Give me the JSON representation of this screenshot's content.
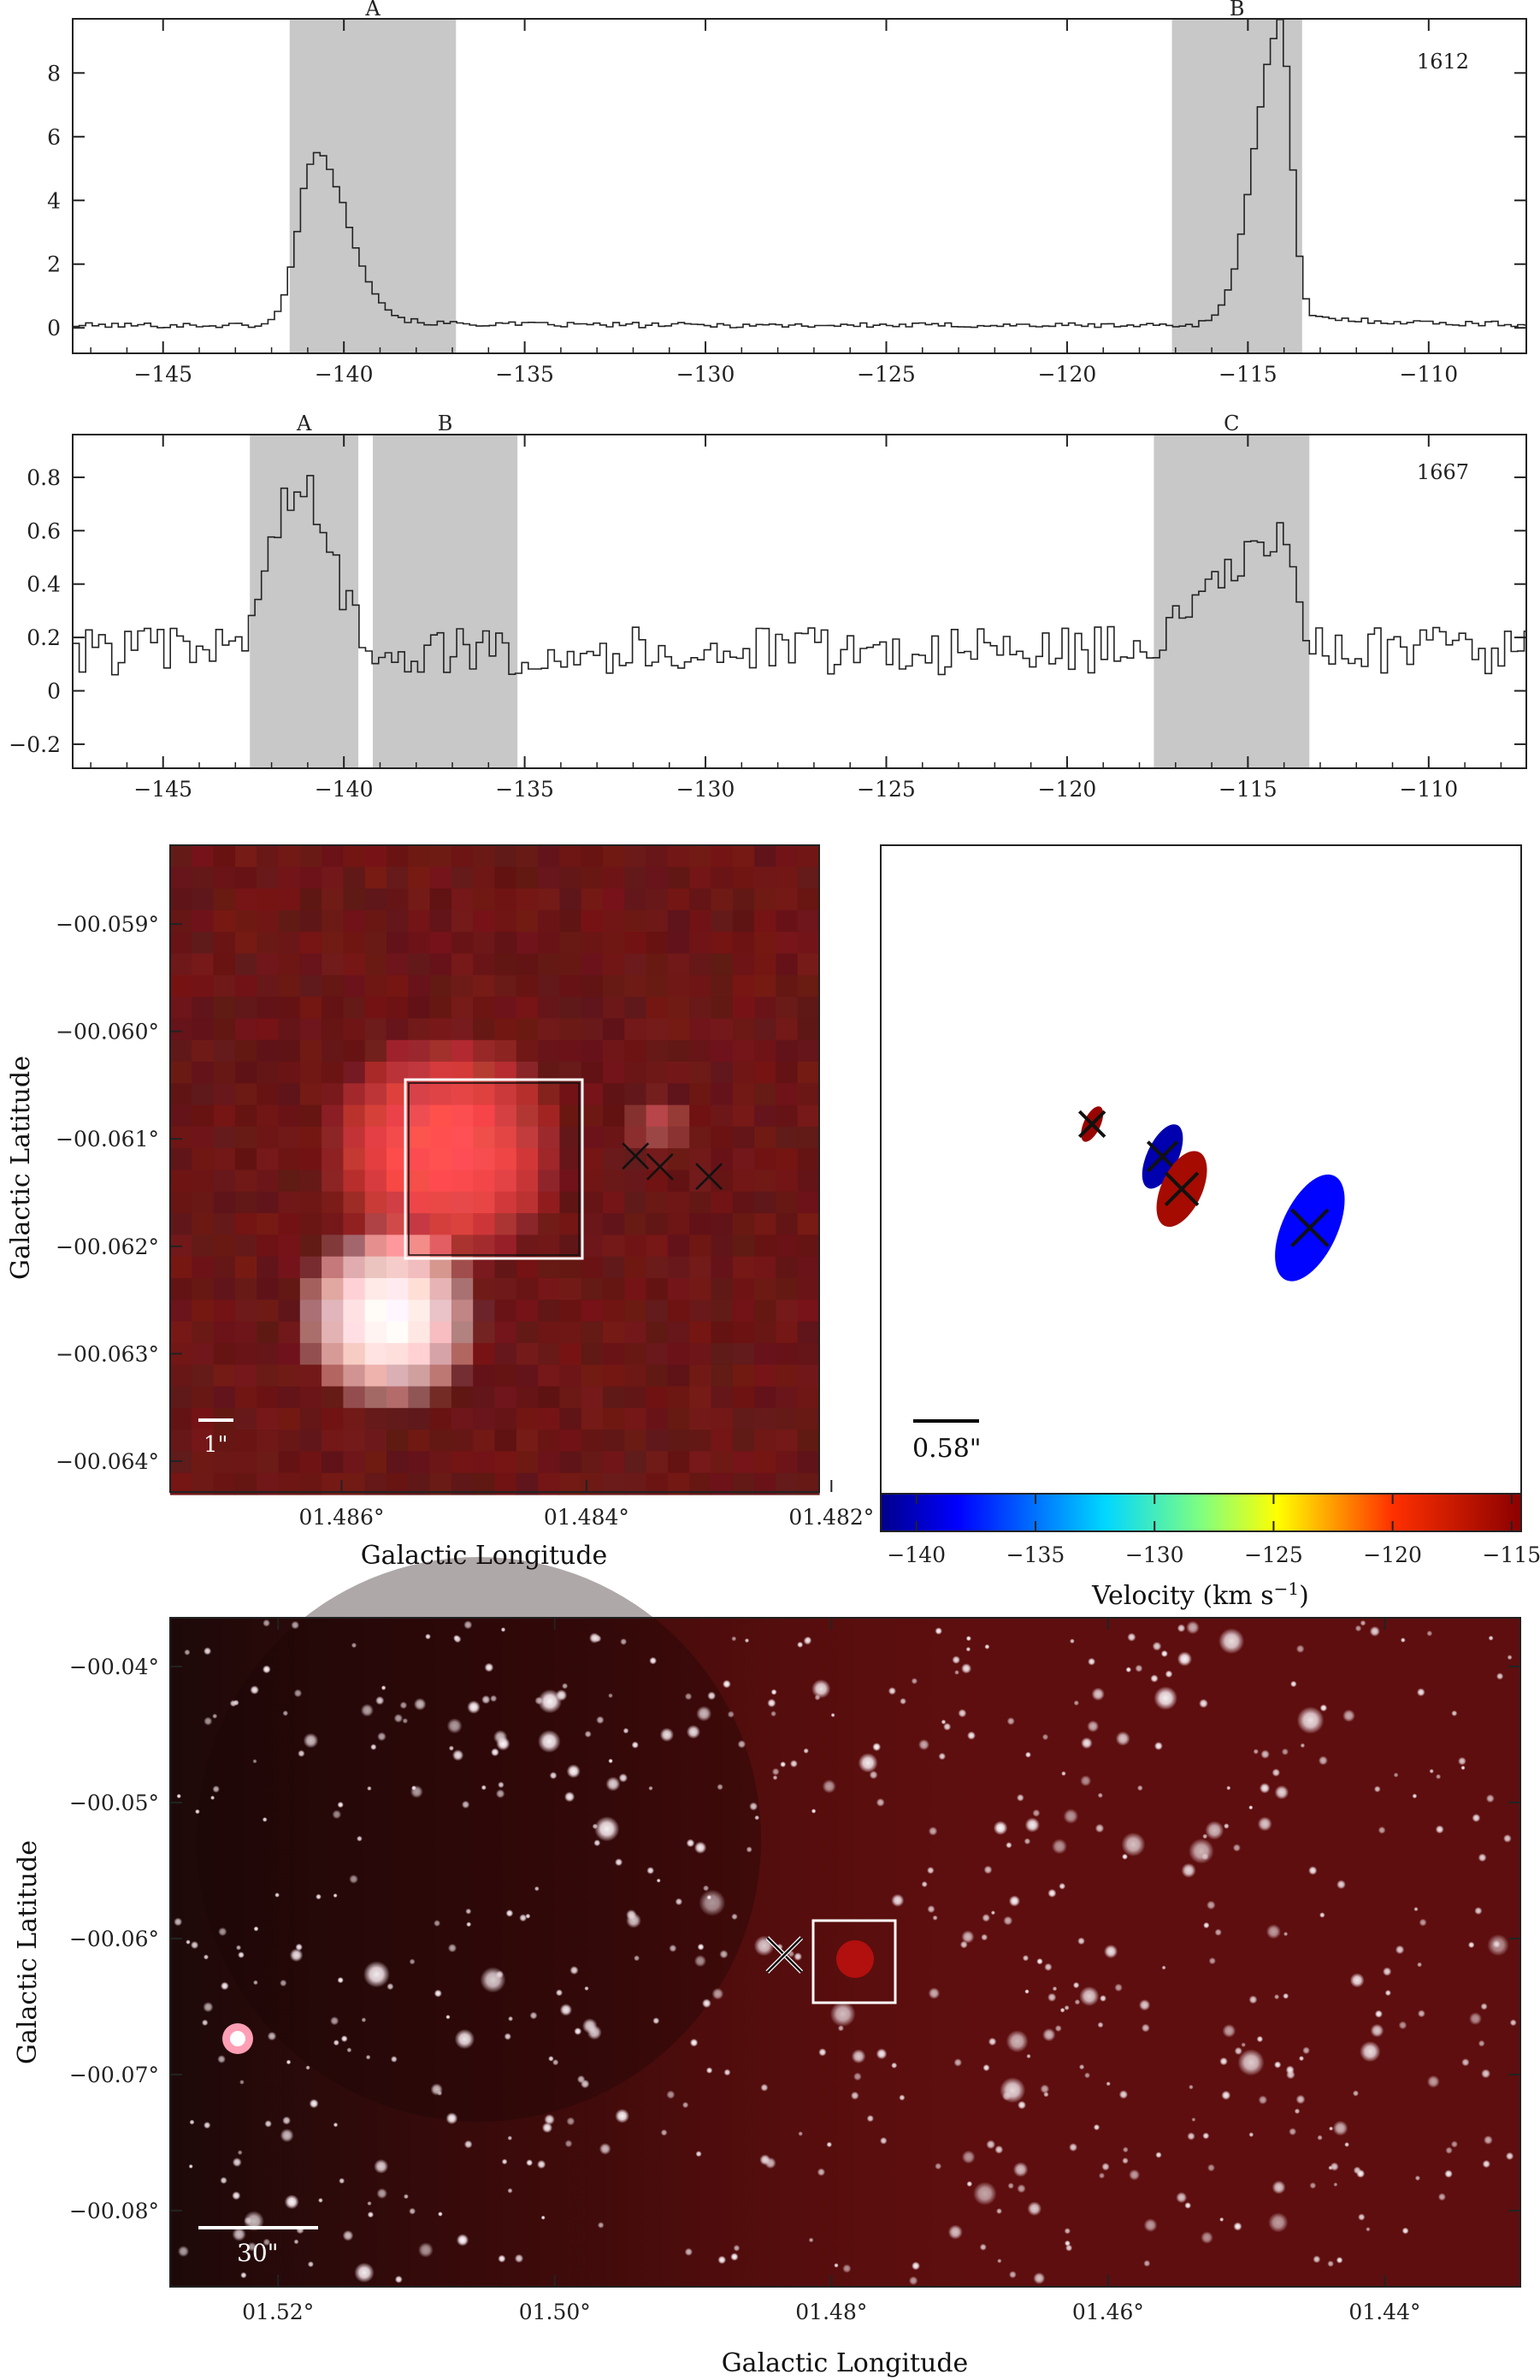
{
  "figure": {
    "background": "#ffffff",
    "shade_color": "#c8c8c8",
    "image_bg_color": "#5e0e0e"
  },
  "chart_data": [
    {
      "type": "line",
      "panel": "spectrum-1612",
      "label": "1612",
      "x_ticks": [
        -145,
        -140,
        -135,
        -130,
        -125,
        -120,
        -115,
        -110
      ],
      "y_ticks": [
        0,
        2,
        4,
        6,
        8
      ],
      "xlim": [
        -147.5,
        -107.3
      ],
      "ylim": [
        -0.8,
        9.7
      ],
      "regions": [
        {
          "name": "A",
          "x0": -141.5,
          "x1": -136.9
        },
        {
          "name": "B",
          "x0": -117.1,
          "x1": -113.5
        }
      ],
      "series": [
        {
          "peaks": [
            {
              "center": -140.9,
              "amp": 5.3,
              "wl": 0.45,
              "wr": 0.9
            },
            {
              "center": -114.2,
              "amp": 9.3,
              "wl": 0.7,
              "wr": 0.3
            }
          ],
          "baseline": 0.08,
          "noise": 0.08,
          "step": 0.18
        }
      ]
    },
    {
      "type": "line",
      "panel": "spectrum-1667",
      "label": "1667",
      "x_ticks": [
        -145,
        -140,
        -135,
        -130,
        -125,
        -120,
        -115,
        -110
      ],
      "y_ticks": [
        -0.2,
        0,
        0.2,
        0.4,
        0.6,
        0.8
      ],
      "xlim": [
        -147.5,
        -107.3
      ],
      "ylim": [
        -0.29,
        0.96
      ],
      "regions": [
        {
          "name": "A",
          "x0": -142.6,
          "x1": -139.6
        },
        {
          "name": "B",
          "x0": -139.2,
          "x1": -135.2
        },
        {
          "name": "C",
          "x0": -117.6,
          "x1": -113.3
        }
      ],
      "series": [
        {
          "peaks": [
            {
              "center": -141.4,
              "amp": 0.62,
              "wl": 0.7,
              "wr": 0.9
            },
            {
              "center": -114.3,
              "amp": 0.4,
              "wl": 1.6,
              "wr": 0.5
            }
          ],
          "baseline": 0.15,
          "noise": 0.09,
          "step": 0.18
        }
      ]
    },
    {
      "type": "scatter",
      "panel": "zoom-image",
      "xlabel": "Galactic Longitude",
      "ylabel": "Galactic Latitude",
      "x_ticks": [
        "01.486°",
        "01.484°",
        "01.482°"
      ],
      "y_ticks": [
        "−00.059°",
        "−00.060°",
        "−00.061°",
        "−00.062°",
        "−00.063°",
        "−00.064°"
      ],
      "scale_bar": "1\"",
      "markers": [
        {
          "l": 1.4836,
          "b": -0.06116
        },
        {
          "l": 1.4834,
          "b": -0.06126
        },
        {
          "l": 1.483,
          "b": -0.06135
        }
      ]
    },
    {
      "type": "scatter",
      "panel": "velocity-map",
      "scale_bar": "0.58\"",
      "colorbar_label": "Velocity (km s",
      "colorbar_label_sup": "−1",
      "colorbar_label_end": ")",
      "colorbar_ticks": [
        -140,
        -135,
        -130,
        -125,
        -120,
        -115
      ],
      "colorbar_range": [
        -141.5,
        -114.6
      ],
      "spots": [
        {
          "velocity": -115.2,
          "rx": 0.35,
          "ry": 0.8,
          "angle": 25,
          "u": 0.33,
          "v": 0.43
        },
        {
          "velocity": -140.5,
          "rx": 0.65,
          "ry": 1.45,
          "angle": 25,
          "u": 0.44,
          "v": 0.48
        },
        {
          "velocity": -115.8,
          "rx": 0.85,
          "ry": 1.7,
          "angle": 25,
          "u": 0.47,
          "v": 0.53
        },
        {
          "velocity": -138.2,
          "rx": 1.15,
          "ry": 2.4,
          "angle": 25,
          "u": 0.67,
          "v": 0.59
        }
      ]
    },
    {
      "type": "scatter",
      "panel": "wide-image",
      "xlabel": "Galactic Longitude",
      "ylabel": "Galactic Latitude",
      "x_ticks": [
        "01.52°",
        "01.50°",
        "01.48°",
        "01.46°",
        "01.44°"
      ],
      "y_ticks": [
        "−00.04°",
        "−00.05°",
        "−00.06°",
        "−00.07°",
        "−00.08°"
      ],
      "scale_bar": "30\"",
      "marker": {
        "l": 1.4834,
        "b": -0.0612
      }
    }
  ]
}
